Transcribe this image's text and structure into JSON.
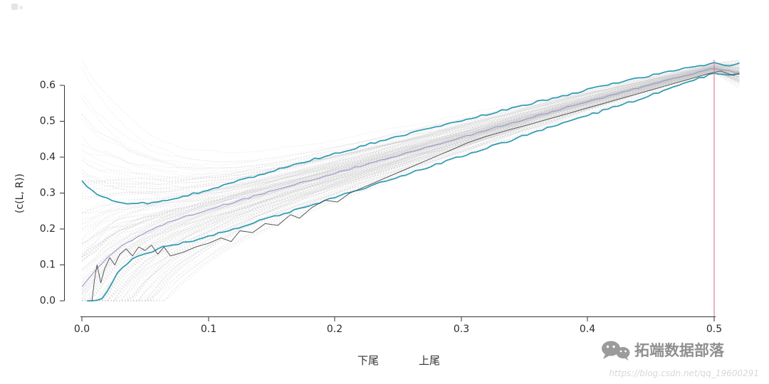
{
  "chart": {
    "ylabel": "(c(L, R))",
    "x_tick_labels": [
      "0.0",
      "0.1",
      "0.2",
      "0.3",
      "0.4",
      "0.5"
    ],
    "y_tick_labels": [
      "0.0",
      "0.1",
      "0.2",
      "0.3",
      "0.4",
      "0.5",
      "0.6"
    ],
    "lower_tail_label": "下尾",
    "upper_tail_label": "上尾"
  },
  "watermark": {
    "brand": "拓端数据部落",
    "url_text": "https://blog.csdn.net/qq_19600291"
  },
  "chart_data": {
    "type": "line",
    "title": "",
    "xlabel": "",
    "ylabel": "(c(L, R))",
    "xlim": [
      0,
      0.52
    ],
    "ylim": [
      0,
      0.66
    ],
    "x_ticks": [
      0,
      0.1,
      0.2,
      0.3,
      0.4,
      0.5
    ],
    "y_ticks": [
      0,
      0.1,
      0.2,
      0.3,
      0.4,
      0.5,
      0.6
    ],
    "grid": false,
    "legend": "none",
    "annotations": [
      "下尾",
      "上尾"
    ],
    "reference_line": {
      "orientation": "vertical",
      "x": 0.5,
      "color": "#e2738f"
    },
    "series": [
      {
        "name": "simulated-replicates",
        "style": "ensemble",
        "count": 160,
        "color": "#c6c6c6",
        "description": "bootstrap replicate curves: wide spread (0 to 0.65) near x=0, converging to about (0.5, 0.65)"
      },
      {
        "name": "mean-estimate",
        "color": "#9593cf",
        "x": [
          0,
          0.005,
          0.01,
          0.02,
          0.03,
          0.04,
          0.05,
          0.07,
          0.1,
          0.15,
          0.2,
          0.25,
          0.3,
          0.35,
          0.4,
          0.45,
          0.5,
          0.52
        ],
        "values": [
          0.04,
          0.06,
          0.08,
          0.12,
          0.15,
          0.17,
          0.19,
          0.22,
          0.255,
          0.305,
          0.355,
          0.405,
          0.455,
          0.505,
          0.555,
          0.602,
          0.648,
          0.635
        ]
      },
      {
        "name": "upper-confidence-band",
        "color": "#2b9ab0",
        "x": [
          0,
          0.005,
          0.01,
          0.02,
          0.03,
          0.04,
          0.05,
          0.06,
          0.08,
          0.1,
          0.12,
          0.15,
          0.2,
          0.25,
          0.3,
          0.35,
          0.4,
          0.45,
          0.5,
          0.51,
          0.52
        ],
        "values": [
          0.335,
          0.315,
          0.3,
          0.285,
          0.275,
          0.27,
          0.272,
          0.276,
          0.29,
          0.31,
          0.33,
          0.36,
          0.41,
          0.458,
          0.503,
          0.545,
          0.588,
          0.627,
          0.663,
          0.655,
          0.662
        ]
      },
      {
        "name": "lower-confidence-band",
        "color": "#2b9ab0",
        "x": [
          0.004,
          0.01,
          0.015,
          0.02,
          0.025,
          0.03,
          0.04,
          0.05,
          0.06,
          0.08,
          0.1,
          0.12,
          0.15,
          0.2,
          0.25,
          0.3,
          0.35,
          0.4,
          0.45,
          0.5,
          0.51,
          0.52
        ],
        "values": [
          0.0,
          0.0,
          0.005,
          0.025,
          0.06,
          0.09,
          0.115,
          0.13,
          0.145,
          0.162,
          0.178,
          0.2,
          0.232,
          0.287,
          0.345,
          0.402,
          0.46,
          0.516,
          0.572,
          0.634,
          0.627,
          0.632
        ]
      },
      {
        "name": "empirical-estimate",
        "color": "#4a4a4a",
        "x": [
          0.008,
          0.01,
          0.012,
          0.015,
          0.018,
          0.022,
          0.026,
          0.03,
          0.035,
          0.04,
          0.045,
          0.05,
          0.055,
          0.06,
          0.065,
          0.07,
          0.08,
          0.09,
          0.1,
          0.11,
          0.118,
          0.125,
          0.135,
          0.145,
          0.155,
          0.165,
          0.172,
          0.182,
          0.192,
          0.202,
          0.212,
          0.222,
          0.232,
          0.242,
          0.252,
          0.262,
          0.272,
          0.282,
          0.292,
          0.305,
          0.32,
          0.34,
          0.36,
          0.38,
          0.4,
          0.42,
          0.44,
          0.46,
          0.48,
          0.495,
          0.505,
          0.515,
          0.52
        ],
        "values": [
          0.0,
          0.06,
          0.1,
          0.05,
          0.09,
          0.12,
          0.1,
          0.13,
          0.145,
          0.125,
          0.15,
          0.14,
          0.155,
          0.13,
          0.15,
          0.125,
          0.135,
          0.15,
          0.16,
          0.175,
          0.165,
          0.195,
          0.19,
          0.215,
          0.21,
          0.24,
          0.23,
          0.26,
          0.28,
          0.275,
          0.3,
          0.315,
          0.33,
          0.345,
          0.36,
          0.375,
          0.39,
          0.405,
          0.42,
          0.44,
          0.458,
          0.478,
          0.497,
          0.517,
          0.537,
          0.557,
          0.577,
          0.597,
          0.617,
          0.632,
          0.64,
          0.628,
          0.633
        ]
      }
    ]
  }
}
